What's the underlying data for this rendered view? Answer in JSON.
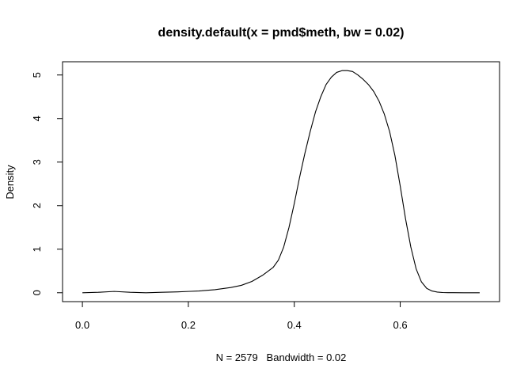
{
  "chart_data": {
    "type": "line",
    "title": "density.default(x = pmd$meth, bw = 0.02)",
    "xlabel": "N = 2579   Bandwidth = 0.02",
    "ylabel": "Density",
    "xlim": [
      -0.0375,
      0.7875
    ],
    "ylim": [
      -0.204,
      5.304
    ],
    "x_ticks": [
      "0.0",
      "0.2",
      "0.4",
      "0.6"
    ],
    "y_ticks": [
      "0",
      "1",
      "2",
      "3",
      "4",
      "5"
    ],
    "grid": false,
    "legend": "none",
    "series": [
      {
        "x": [
          0.0,
          0.03,
          0.06,
          0.09,
          0.12,
          0.15,
          0.18,
          0.2,
          0.22,
          0.25,
          0.28,
          0.3,
          0.32,
          0.34,
          0.36,
          0.37,
          0.38,
          0.39,
          0.4,
          0.41,
          0.42,
          0.43,
          0.44,
          0.45,
          0.46,
          0.47,
          0.48,
          0.49,
          0.5,
          0.51,
          0.52,
          0.53,
          0.54,
          0.55,
          0.56,
          0.57,
          0.58,
          0.59,
          0.6,
          0.61,
          0.62,
          0.63,
          0.64,
          0.65,
          0.66,
          0.67,
          0.68,
          0.69,
          0.7,
          0.72,
          0.75
        ],
        "y": [
          0.0,
          0.01,
          0.03,
          0.01,
          0.0,
          0.01,
          0.02,
          0.03,
          0.04,
          0.07,
          0.12,
          0.17,
          0.26,
          0.4,
          0.58,
          0.75,
          1.05,
          1.5,
          2.05,
          2.65,
          3.2,
          3.7,
          4.15,
          4.5,
          4.78,
          4.95,
          5.06,
          5.1,
          5.1,
          5.08,
          5.0,
          4.9,
          4.78,
          4.62,
          4.4,
          4.1,
          3.7,
          3.15,
          2.45,
          1.7,
          1.05,
          0.55,
          0.25,
          0.1,
          0.04,
          0.015,
          0.005,
          0.002,
          0.001,
          0.0,
          0.0
        ]
      }
    ]
  }
}
